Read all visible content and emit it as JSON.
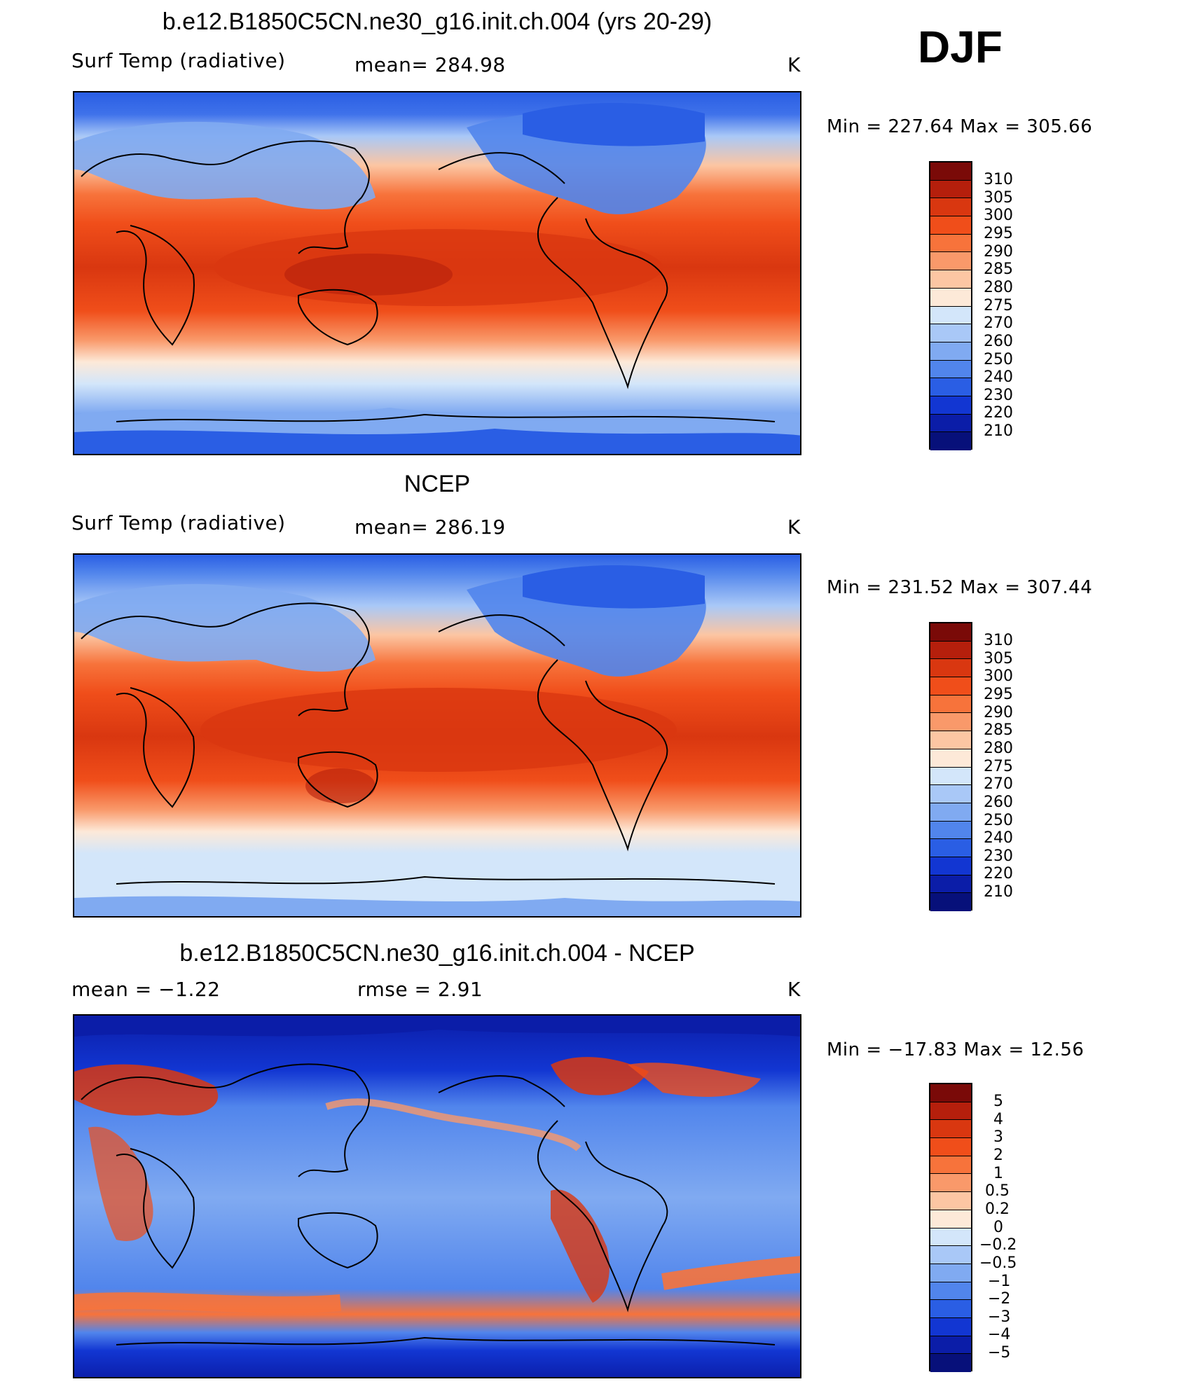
{
  "season": "DJF",
  "panels": [
    {
      "title": "b.e12.B1850C5CN.ne30_g16.init.ch.004 (yrs 20-29)",
      "left_label": "Surf Temp (radiative)",
      "center_label": "mean=  284.98",
      "units": "K",
      "minmax": "Min  =  227.64  Max  =  305.66",
      "colorbar_labels": [
        "310",
        "305",
        "300",
        "295",
        "290",
        "285",
        "280",
        "275",
        "270",
        "260",
        "250",
        "240",
        "230",
        "220",
        "210"
      ]
    },
    {
      "title": "NCEP",
      "left_label": "Surf Temp (radiative)",
      "center_label": "mean=  286.19",
      "units": "K",
      "minmax": "Min  =  231.52  Max  =  307.44",
      "colorbar_labels": [
        "310",
        "305",
        "300",
        "295",
        "290",
        "285",
        "280",
        "275",
        "270",
        "260",
        "250",
        "240",
        "230",
        "220",
        "210"
      ]
    },
    {
      "title": "b.e12.B1850C5CN.ne30_g16.init.ch.004 - NCEP",
      "left_label": "mean  =     −1.22",
      "center_label": "rmse  =     2.91",
      "units": "K",
      "minmax": "Min  =  −17.83  Max  =    12.56",
      "colorbar_labels": [
        "5",
        "4",
        "3",
        "2",
        "1",
        "0.5",
        "0.2",
        "0",
        "−0.2",
        "−0.5",
        "−1",
        "−2",
        "−3",
        "−4",
        "−5"
      ]
    }
  ],
  "colors": {
    "temperature_scale": [
      "#7a0a08",
      "#b51f0c",
      "#d93710",
      "#f04e1a",
      "#f7733b",
      "#f9996a",
      "#fcc6a3",
      "#fde9d8",
      "#d3e6fa",
      "#a9c8f7",
      "#80aaf1",
      "#5185ec",
      "#2a5ee4",
      "#1236d2",
      "#0b1da8",
      "#07107a"
    ],
    "difference_scale": [
      "#7a0a08",
      "#b51f0c",
      "#d93710",
      "#f04e1a",
      "#f7733b",
      "#f9996a",
      "#fcc6a3",
      "#fde9d8",
      "#d3e6fa",
      "#a9c8f7",
      "#80aaf1",
      "#5185ec",
      "#2a5ee4",
      "#1236d2",
      "#0b1da8",
      "#07107a"
    ]
  }
}
